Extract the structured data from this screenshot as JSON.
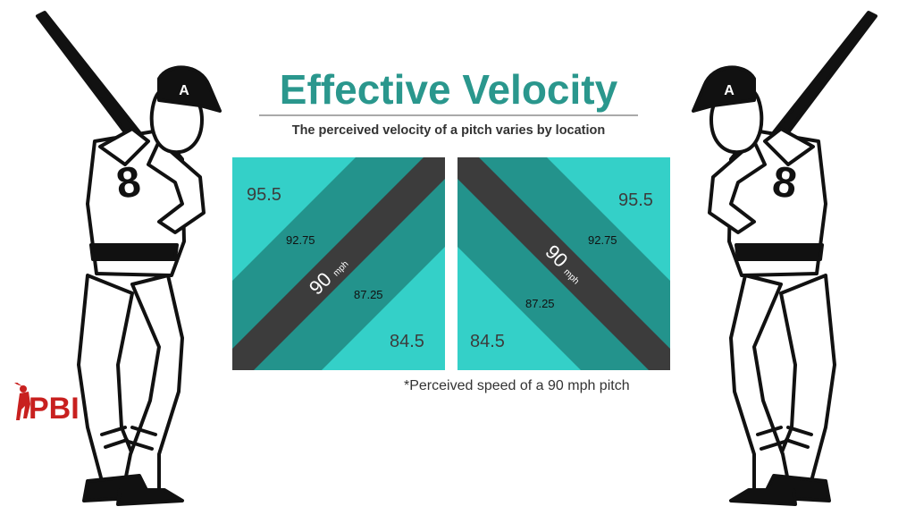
{
  "header": {
    "title": "Effective Velocity",
    "subtitle": "The perceived velocity of a pitch varies by location"
  },
  "zones": [
    {
      "labels": {
        "top_corner": "95.5",
        "upper_band": "92.75",
        "center_value": "90",
        "center_unit": "mph",
        "lower_band": "87.25",
        "bottom_corner": "84.5"
      }
    },
    {
      "labels": {
        "top_corner": "95.5",
        "upper_band": "92.75",
        "center_value": "90",
        "center_unit": "mph",
        "lower_band": "87.25",
        "bottom_corner": "84.5"
      }
    }
  ],
  "footnote": "*Perceived speed of a 90 mph pitch",
  "logo": {
    "text": "PBI"
  },
  "batter": {
    "cap_letter": "A",
    "jersey_number": "8"
  },
  "colors": {
    "title": "#2a978d",
    "light_zone": "#34d0c8",
    "mid_zone": "#23938c",
    "center_band": "#3c3c3c",
    "logo": "#c8201f"
  }
}
